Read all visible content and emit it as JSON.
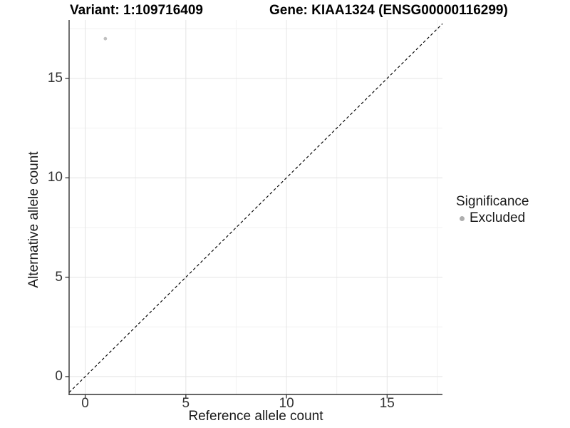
{
  "chart_data": {
    "type": "scatter",
    "title_variant": "Variant: 1:109716409",
    "title_gene": "Gene: KIAA1324 (ENSG00000116299)",
    "xlabel": "Reference allele count",
    "ylabel": "Alternative allele count",
    "xlim": [
      -0.8,
      17.75
    ],
    "ylim": [
      -0.9,
      17.94
    ],
    "x_ticks": [
      0,
      5,
      10,
      15
    ],
    "y_ticks": [
      0,
      5,
      10,
      15
    ],
    "x_minor_ticks": [
      2.5,
      7.5,
      12.5,
      17.5
    ],
    "y_minor_ticks": [
      2.5,
      7.5,
      12.5,
      17.5
    ],
    "grid": true,
    "points": [
      {
        "x": 1,
        "y": 17,
        "significance": "Excluded"
      }
    ],
    "identity_line": {
      "equation": "y = x",
      "style": "dashed",
      "color": "#000000"
    },
    "legend": {
      "title": "Significance",
      "position": "right",
      "entries": [
        {
          "label": "Excluded",
          "color": "#aeaeae",
          "marker": "circle"
        }
      ]
    },
    "colors": {
      "background": "#ffffff",
      "point": "#c0c0c0",
      "axis": "#333333",
      "grid_major": "#e4e4e4",
      "grid_minor": "#f1f1f1",
      "title_text": "#000000",
      "axis_text": "#333333"
    }
  }
}
